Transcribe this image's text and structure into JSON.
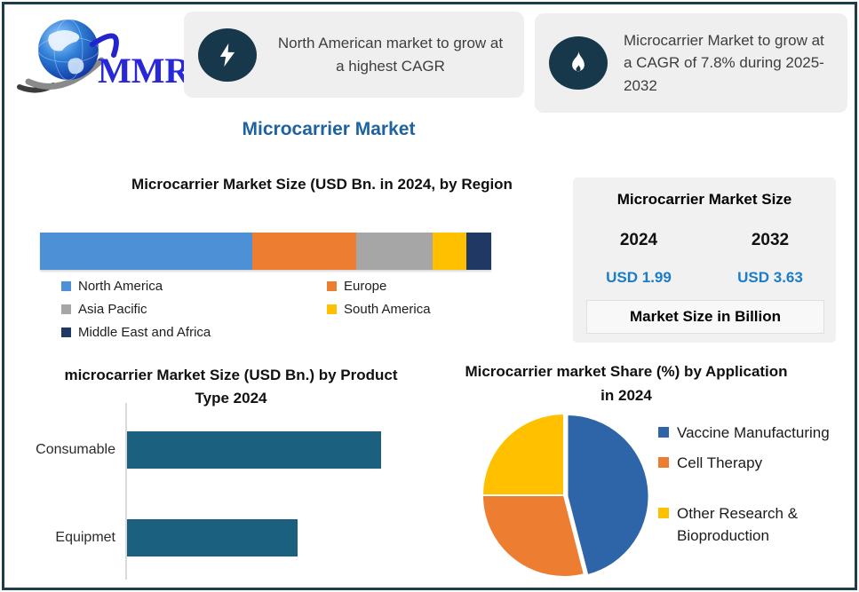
{
  "logo": {
    "text": "MMR"
  },
  "header": {
    "callout1": {
      "icon": "lightning-icon",
      "text": "North American market to grow at a highest CAGR"
    },
    "callout2": {
      "icon": "flame-icon",
      "text": "Microcarrier Market to grow at a CAGR of 7.8% during 2025-2032"
    }
  },
  "page_title": "Microcarrier Market",
  "size_panel": {
    "title": "Microcarrier Market Size",
    "col1": {
      "year": "2024",
      "value": "USD 1.99"
    },
    "col2": {
      "year": "2032",
      "value": "USD 3.63"
    },
    "note": "Market Size in Billion"
  },
  "colors": {
    "page_title_blue": "#1E62A0",
    "usd_value_blue": "#1B7CC8",
    "callout_circle": "#17384A",
    "frame_border": "#1E3D4C"
  },
  "chart_data": [
    {
      "id": "region",
      "type": "bar",
      "subtype": "stacked-horizontal-single-bar",
      "title": "Microcarrier Market Size (USD Bn. in 2024, by Region",
      "categories": [
        "North America",
        "Europe",
        "Asia Pacific",
        "South America",
        "Middle East and Africa"
      ],
      "values": [
        47,
        23,
        17,
        7.5,
        5.5
      ],
      "values_note": "approximate % of total bar width; segment values are not labeled in the image",
      "colors": [
        "#4E90D5",
        "#ED7D31",
        "#A6A6A6",
        "#FFC000",
        "#1F3864"
      ],
      "legend_position": "bottom",
      "axes": "none"
    },
    {
      "id": "product",
      "type": "bar",
      "subtype": "horizontal",
      "title": "microcarrier Market  Size (USD Bn.) by Product Type 2024",
      "categories": [
        "Consumable",
        "Equipmet"
      ],
      "values": [
        100,
        67
      ],
      "values_note": "relative bar lengths; axis values and data labels are not shown in the image",
      "color": "#1B607F",
      "axes": "left baseline only, no ticks"
    },
    {
      "id": "application",
      "type": "pie",
      "title": "Microcarrier market Share (%) by Application in 2024",
      "labels": [
        "Vaccine Manufacturing",
        "Cell Therapy",
        "Other Research & Bioproduction"
      ],
      "values": [
        46,
        29,
        25
      ],
      "values_note": "approximate %, slice values are not labeled in the image",
      "colors": [
        "#2E64A8",
        "#ED7D31",
        "#FFC000"
      ],
      "legend_position": "right",
      "start_angle": "12 o'clock, clockwise",
      "exploded_slice": "Vaccine Manufacturing (slightly offset)"
    }
  ]
}
